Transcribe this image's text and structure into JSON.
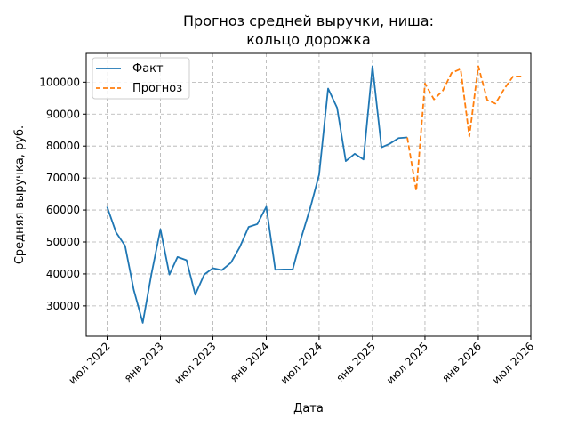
{
  "chart_data": {
    "type": "line",
    "title_lines": [
      "Прогноз средней выручки, ниша:",
      "кольцо дорожка"
    ],
    "xlabel": "Дата",
    "ylabel": "Средняя выручка, руб.",
    "grid": true,
    "legend_position": "top-left",
    "x_ticks": [
      {
        "date": "2022-07-01",
        "label": "июл 2022"
      },
      {
        "date": "2023-01-01",
        "label": "янв 2023"
      },
      {
        "date": "2023-07-01",
        "label": "июл 2023"
      },
      {
        "date": "2024-01-01",
        "label": "янв 2024"
      },
      {
        "date": "2024-07-01",
        "label": "июл 2024"
      },
      {
        "date": "2025-01-01",
        "label": "янв 2025"
      },
      {
        "date": "2025-07-01",
        "label": "июл 2025"
      },
      {
        "date": "2026-01-01",
        "label": "янв 2026"
      },
      {
        "date": "2026-07-01",
        "label": "июл 2026"
      }
    ],
    "y_ticks": [
      30000,
      40000,
      50000,
      60000,
      70000,
      80000,
      90000,
      100000
    ],
    "xlim": [
      "2022-04-20",
      "2026-07-01"
    ],
    "ylim": [
      20500,
      109000
    ],
    "series": [
      {
        "name": "Факт",
        "color": "#1f77b4",
        "style": "solid",
        "x": [
          "2022-07-01",
          "2022-08-01",
          "2022-09-01",
          "2022-10-01",
          "2022-11-01",
          "2022-12-01",
          "2023-01-01",
          "2023-02-01",
          "2023-03-01",
          "2023-04-01",
          "2023-05-01",
          "2023-06-01",
          "2023-07-01",
          "2023-08-01",
          "2023-09-01",
          "2023-10-01",
          "2023-11-01",
          "2023-12-01",
          "2024-01-01",
          "2024-02-01",
          "2024-03-01",
          "2024-04-01",
          "2024-05-01",
          "2024-06-01",
          "2024-07-01",
          "2024-08-01",
          "2024-09-01",
          "2024-10-01",
          "2024-11-01",
          "2024-12-01",
          "2025-01-01",
          "2025-02-01",
          "2025-03-01",
          "2025-04-01",
          "2025-05-01"
        ],
        "values": [
          61000,
          53000,
          48800,
          35000,
          24700,
          40000,
          54000,
          39800,
          45300,
          44300,
          33500,
          39800,
          41800,
          41200,
          43500,
          48300,
          54700,
          55600,
          61000,
          41300,
          41400,
          41400,
          51500,
          60800,
          71000,
          98000,
          92000,
          75300,
          77600,
          75800,
          105000,
          79600,
          80700,
          82500,
          82700
        ]
      },
      {
        "name": "Прогноз",
        "color": "#ff7f0e",
        "style": "dashed",
        "x": [
          "2025-05-01",
          "2025-06-01",
          "2025-07-01",
          "2025-08-01",
          "2025-09-01",
          "2025-10-01",
          "2025-11-01",
          "2025-12-01",
          "2026-01-01",
          "2026-02-01",
          "2026-03-01",
          "2026-04-01",
          "2026-05-01",
          "2026-06-01"
        ],
        "values": [
          82700,
          66000,
          99600,
          94600,
          97400,
          102900,
          104100,
          83000,
          105000,
          94400,
          93300,
          98000,
          101800,
          101800
        ]
      }
    ]
  }
}
